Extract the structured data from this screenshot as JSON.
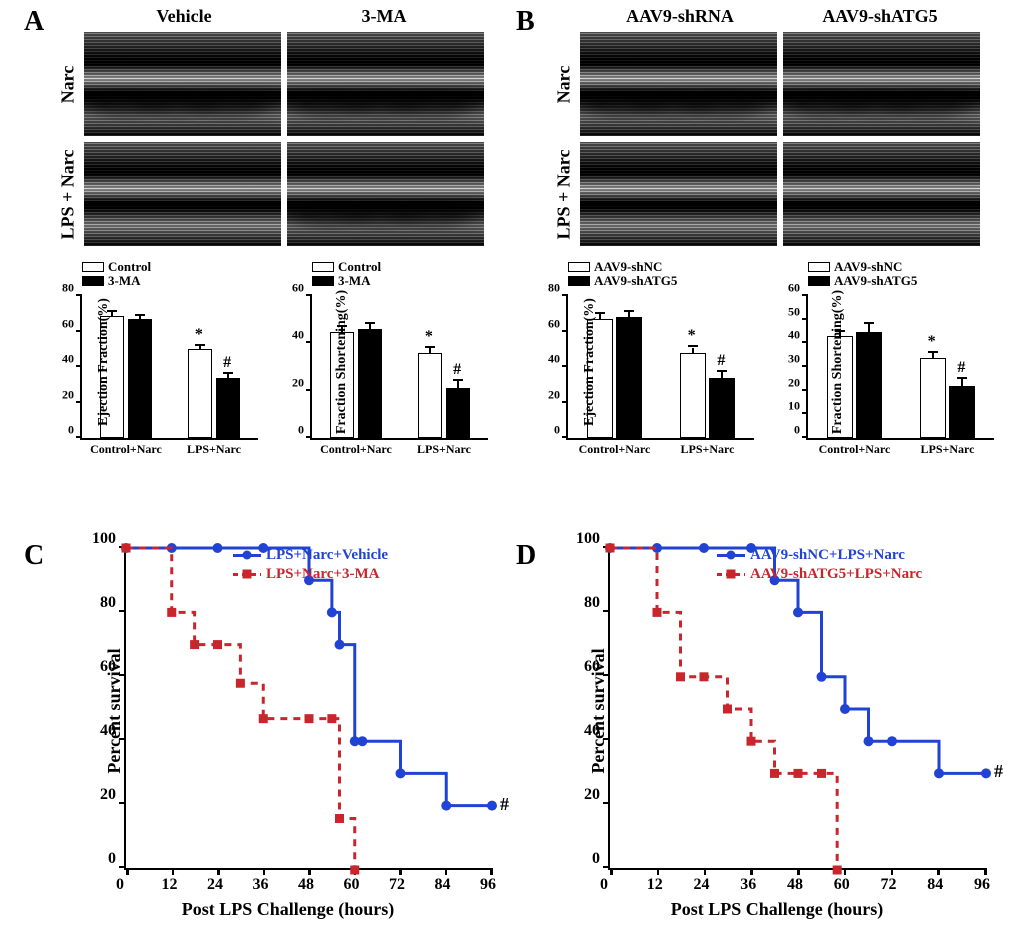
{
  "colors": {
    "blue": "#2043d3",
    "red": "#c9252c",
    "black": "#000000",
    "white": "#ffffff"
  },
  "panelA": {
    "label": "A",
    "col_titles": [
      "Vehicle",
      "3-MA"
    ],
    "row_labels": [
      "Narc",
      "LPS + Narc"
    ],
    "bar1": {
      "legend": [
        "Control",
        "3-MA"
      ],
      "ylabel": "Ejection Fraction(%)",
      "ymax": 80,
      "ytick_step": 20,
      "groups": [
        "Control+Narc",
        "LPS+Narc"
      ],
      "series": [
        {
          "color": "#ffffff",
          "values": [
            69,
            50
          ],
          "err": [
            2,
            2
          ],
          "sig": [
            "",
            "*"
          ]
        },
        {
          "color": "#000000",
          "values": [
            67,
            34
          ],
          "err": [
            2,
            2
          ],
          "sig": [
            "",
            "#"
          ]
        }
      ]
    },
    "bar2": {
      "legend": [
        "Control",
        "3-MA"
      ],
      "ylabel": "Fraction  Shortening(%)",
      "ymax": 60,
      "ytick_step": 20,
      "groups": [
        "Control+Narc",
        "LPS+Narc"
      ],
      "series": [
        {
          "color": "#ffffff",
          "values": [
            45,
            36
          ],
          "err": [
            2,
            2
          ],
          "sig": [
            "",
            "*"
          ]
        },
        {
          "color": "#000000",
          "values": [
            46,
            21
          ],
          "err": [
            2,
            3
          ],
          "sig": [
            "",
            "#"
          ]
        }
      ]
    }
  },
  "panelB": {
    "label": "B",
    "col_titles": [
      "AAV9-shRNA",
      "AAV9-shATG5"
    ],
    "row_labels": [
      "Narc",
      "LPS + Narc"
    ],
    "bar1": {
      "legend": [
        "AAV9-shNC",
        "AAV9-shATG5"
      ],
      "ylabel": "Ejection Fraction(%)",
      "ymax": 80,
      "ytick_step": 20,
      "groups": [
        "Control+Narc",
        "LPS+Narc"
      ],
      "series": [
        {
          "color": "#ffffff",
          "values": [
            67,
            48
          ],
          "err": [
            3,
            3
          ],
          "sig": [
            "",
            "*"
          ]
        },
        {
          "color": "#000000",
          "values": [
            68,
            34
          ],
          "err": [
            3,
            3
          ],
          "sig": [
            "",
            "#"
          ]
        }
      ]
    },
    "bar2": {
      "legend": [
        "AAV9-shNC",
        "AAV9-shATG5"
      ],
      "ylabel": "Fraction  Shortening(%)",
      "ymax": 60,
      "ytick_step": 10,
      "groups": [
        "Control+Narc",
        "LPS+Narc"
      ],
      "series": [
        {
          "color": "#ffffff",
          "values": [
            43,
            34
          ],
          "err": [
            2,
            2
          ],
          "sig": [
            "",
            "*"
          ]
        },
        {
          "color": "#000000",
          "values": [
            45,
            22
          ],
          "err": [
            3,
            3
          ],
          "sig": [
            "",
            "#"
          ]
        }
      ]
    }
  },
  "panelC": {
    "label": "C",
    "ylabel": "Percent survival",
    "xtitle": "Post LPS Challenge (hours)",
    "ymax": 100,
    "ytick_step": 20,
    "xmax": 96,
    "xtick_step": 12,
    "xmin": 0,
    "legend": [
      {
        "label": "LPS+Narc+Vehicle",
        "color": "#2043d3",
        "marker": "circle",
        "dash": false
      },
      {
        "label": "LPS+Narc+3-MA",
        "color": "#c9252c",
        "marker": "square",
        "dash": true
      }
    ],
    "series": [
      {
        "color": "#2043d3",
        "marker": "circle",
        "dash": false,
        "points": [
          [
            0,
            100
          ],
          [
            12,
            100
          ],
          [
            24,
            100
          ],
          [
            36,
            100
          ],
          [
            48,
            90
          ],
          [
            54,
            80
          ],
          [
            56,
            70
          ],
          [
            60,
            40
          ],
          [
            62,
            40
          ],
          [
            72,
            30
          ],
          [
            84,
            20
          ],
          [
            96,
            20
          ]
        ]
      },
      {
        "color": "#c9252c",
        "marker": "square",
        "dash": true,
        "points": [
          [
            0,
            100
          ],
          [
            12,
            80
          ],
          [
            18,
            70
          ],
          [
            24,
            70
          ],
          [
            30,
            58
          ],
          [
            36,
            47
          ],
          [
            48,
            47
          ],
          [
            54,
            47
          ],
          [
            56,
            16
          ],
          [
            60,
            0
          ]
        ]
      }
    ],
    "sig_label": "#"
  },
  "panelD": {
    "label": "D",
    "ylabel": "Percent survival",
    "xtitle": "Post LPS Challenge (hours)",
    "ymax": 100,
    "ytick_step": 20,
    "xmax": 96,
    "xtick_step": 12,
    "xmin": 0,
    "legend": [
      {
        "label": "AAV9-shNC+LPS+Narc",
        "color": "#2043d3",
        "marker": "circle",
        "dash": false
      },
      {
        "label": "AAV9-shATG5+LPS+Narc",
        "color": "#c9252c",
        "marker": "square",
        "dash": true
      }
    ],
    "series": [
      {
        "color": "#2043d3",
        "marker": "circle",
        "dash": false,
        "points": [
          [
            0,
            100
          ],
          [
            12,
            100
          ],
          [
            24,
            100
          ],
          [
            36,
            100
          ],
          [
            42,
            90
          ],
          [
            48,
            80
          ],
          [
            54,
            60
          ],
          [
            60,
            50
          ],
          [
            66,
            40
          ],
          [
            72,
            40
          ],
          [
            84,
            30
          ],
          [
            96,
            30
          ]
        ]
      },
      {
        "color": "#c9252c",
        "marker": "square",
        "dash": true,
        "points": [
          [
            0,
            100
          ],
          [
            12,
            80
          ],
          [
            18,
            60
          ],
          [
            24,
            60
          ],
          [
            30,
            50
          ],
          [
            36,
            40
          ],
          [
            42,
            30
          ],
          [
            48,
            30
          ],
          [
            54,
            30
          ],
          [
            58,
            0
          ]
        ]
      }
    ],
    "sig_label": "#"
  }
}
